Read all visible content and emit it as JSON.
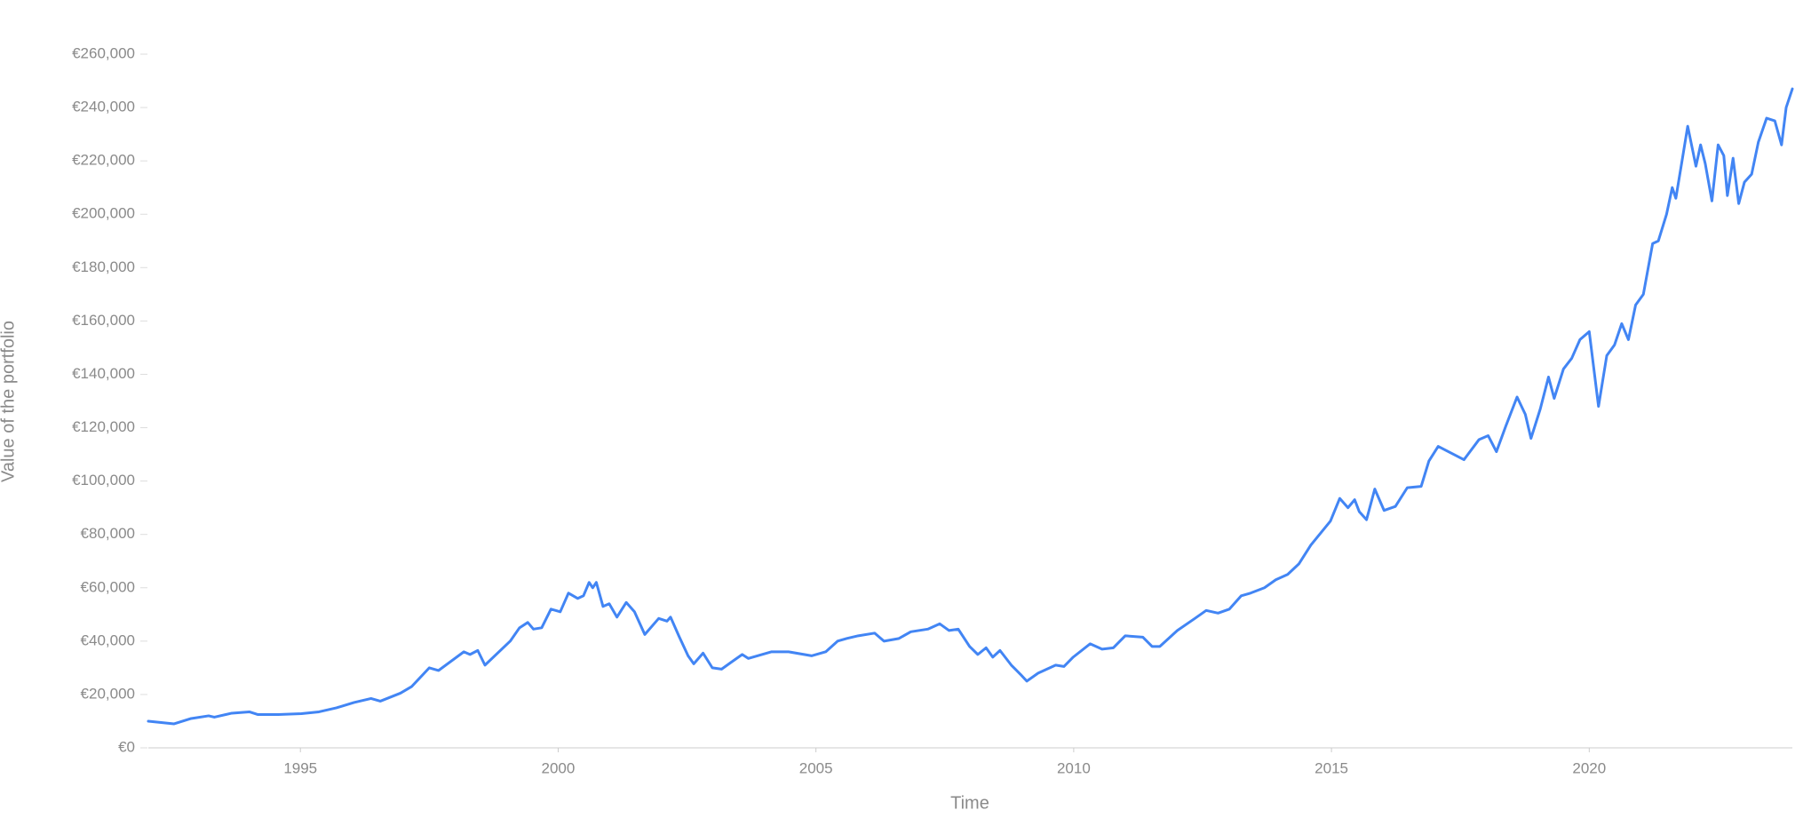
{
  "chart_data": {
    "type": "line",
    "x_label": "Time",
    "y_label": "Value of the portfolio",
    "xlim": [
      1992.05,
      2023.94
    ],
    "xticks": [
      1995,
      2000,
      2005,
      2010,
      2015,
      2020
    ],
    "ylim": [
      0,
      260000
    ],
    "yticks": [
      {
        "value": 0,
        "label": "€0"
      },
      {
        "value": 20000,
        "label": "€20,000"
      },
      {
        "value": 40000,
        "label": "€40,000"
      },
      {
        "value": 60000,
        "label": "€60,000"
      },
      {
        "value": 80000,
        "label": "€80,000"
      },
      {
        "value": 100000,
        "label": "€100,000"
      },
      {
        "value": 120000,
        "label": "€120,000"
      },
      {
        "value": 140000,
        "label": "€140,000"
      },
      {
        "value": 160000,
        "label": "€160,000"
      },
      {
        "value": 180000,
        "label": "€180,000"
      },
      {
        "value": 200000,
        "label": "€200,000"
      },
      {
        "value": 220000,
        "label": "€220,000"
      },
      {
        "value": 240000,
        "label": "€240,000"
      },
      {
        "value": 260000,
        "label": "€260,000"
      }
    ],
    "grid": false,
    "color": "#4285f4",
    "x": [
      1992.05,
      1992.55,
      1992.88,
      1993.22,
      1993.33,
      1993.67,
      1994.01,
      1994.17,
      1994.57,
      1995.02,
      1995.36,
      1995.7,
      1996.04,
      1996.37,
      1996.55,
      1996.94,
      1997.16,
      1997.5,
      1997.68,
      1998.17,
      1998.29,
      1998.44,
      1998.58,
      1999.07,
      1999.25,
      1999.41,
      1999.52,
      1999.68,
      1999.86,
      2000.04,
      2000.2,
      2000.38,
      2000.49,
      2000.6,
      2000.67,
      2000.74,
      2000.87,
      2000.99,
      2001.14,
      2001.32,
      2001.48,
      2001.68,
      2001.95,
      2002.11,
      2002.18,
      2002.34,
      2002.52,
      2002.63,
      2002.81,
      2002.99,
      2003.17,
      2003.35,
      2003.57,
      2003.69,
      2004.14,
      2004.47,
      2004.92,
      2005.19,
      2005.42,
      2005.6,
      2005.82,
      2006.14,
      2006.32,
      2006.61,
      2006.84,
      2007.17,
      2007.4,
      2007.58,
      2007.76,
      2007.98,
      2008.14,
      2008.3,
      2008.43,
      2008.57,
      2008.79,
      2008.97,
      2009.09,
      2009.31,
      2009.65,
      2009.81,
      2009.99,
      2010.32,
      2010.55,
      2010.77,
      2011.0,
      2011.34,
      2011.52,
      2011.67,
      2012.01,
      2012.35,
      2012.57,
      2012.8,
      2013.02,
      2013.25,
      2013.43,
      2013.7,
      2013.92,
      2014.15,
      2014.37,
      2014.6,
      2014.98,
      2015.16,
      2015.32,
      2015.45,
      2015.54,
      2015.68,
      2015.84,
      2016.02,
      2016.24,
      2016.47,
      2016.74,
      2016.89,
      2017.07,
      2017.57,
      2017.86,
      2018.04,
      2018.2,
      2018.38,
      2018.6,
      2018.76,
      2018.87,
      2019.05,
      2019.21,
      2019.32,
      2019.5,
      2019.66,
      2019.82,
      2020.0,
      2020.18,
      2020.34,
      2020.49,
      2020.63,
      2020.76,
      2020.9,
      2021.05,
      2021.23,
      2021.34,
      2021.5,
      2021.61,
      2021.68,
      2021.8,
      2021.91,
      2022.07,
      2022.16,
      2022.25,
      2022.38,
      2022.5,
      2022.61,
      2022.68,
      2022.79,
      2022.9,
      2023.01,
      2023.15,
      2023.28,
      2023.44,
      2023.6,
      2023.73,
      2023.82,
      2023.94
    ],
    "values": [
      10000,
      9000,
      11000,
      12000,
      11500,
      13000,
      13500,
      12500,
      12500,
      12800,
      13500,
      15000,
      17000,
      18500,
      17500,
      20500,
      23000,
      30000,
      29000,
      36000,
      35000,
      36500,
      31000,
      40000,
      45000,
      47000,
      44500,
      45000,
      52000,
      51000,
      58000,
      56000,
      57000,
      62000,
      60000,
      62000,
      53000,
      54000,
      49000,
      54500,
      51000,
      42500,
      48500,
      47500,
      49000,
      42000,
      34500,
      31500,
      35500,
      30000,
      29500,
      32000,
      35000,
      33500,
      36000,
      36000,
      34500,
      36000,
      40000,
      41000,
      42000,
      43000,
      40000,
      41000,
      43500,
      44500,
      46500,
      44000,
      44500,
      38000,
      35000,
      37500,
      34000,
      36500,
      31000,
      27500,
      25000,
      28000,
      31000,
      30500,
      34000,
      39000,
      37000,
      37500,
      42000,
      41500,
      38000,
      38000,
      44000,
      48500,
      51500,
      50500,
      52000,
      57000,
      58000,
      60000,
      63000,
      65000,
      69000,
      76000,
      85000,
      93500,
      90000,
      93000,
      88500,
      85500,
      97000,
      89000,
      90500,
      97500,
      98000,
      107500,
      113000,
      108000,
      115500,
      117000,
      111000,
      120500,
      131500,
      125000,
      116000,
      127000,
      139000,
      131000,
      142000,
      146000,
      153000,
      156000,
      128000,
      147000,
      151000,
      159000,
      153000,
      166000,
      170000,
      189000,
      190000,
      200000,
      210000,
      206000,
      220000,
      233000,
      218000,
      226000,
      219000,
      205000,
      226000,
      222000,
      207000,
      221000,
      204000,
      212000,
      215000,
      227000,
      236000,
      235000,
      226000,
      240000,
      247000
    ]
  }
}
